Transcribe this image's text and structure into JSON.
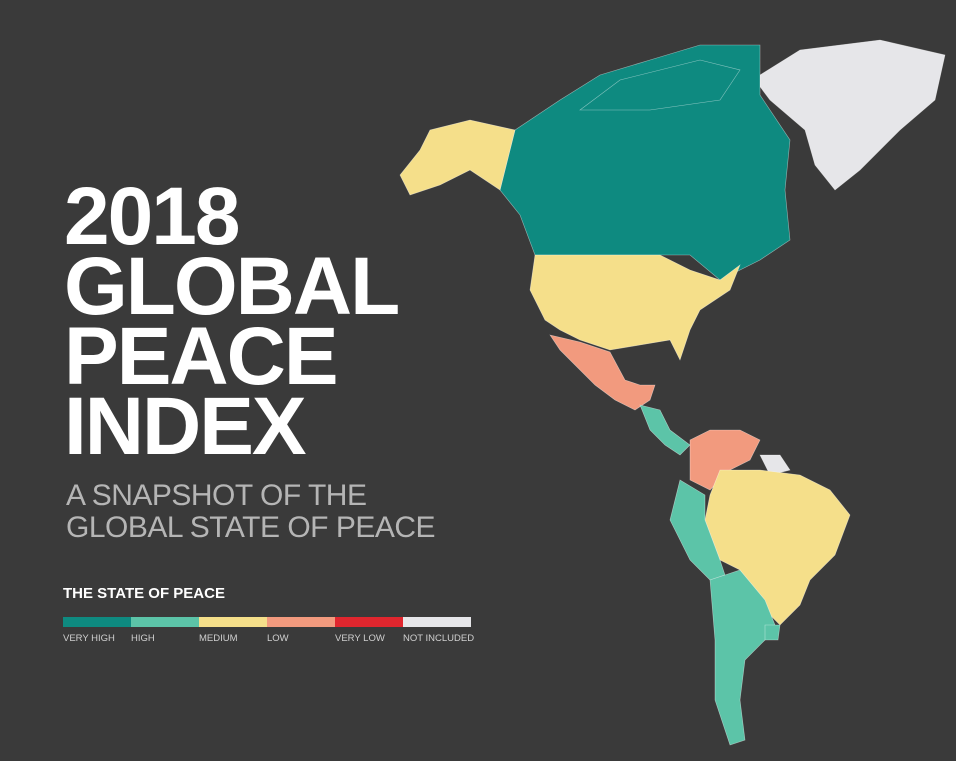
{
  "title_lines": [
    "2018",
    "GLOBAL",
    "PEACE",
    "INDEX"
  ],
  "subtitle_lines": [
    "A SNAPSHOT OF THE",
    "GLOBAL STATE OF PEACE"
  ],
  "legend": {
    "title": "THE STATE OF PEACE",
    "items": [
      {
        "label": "VERY HIGH",
        "color": "#0e8a80"
      },
      {
        "label": "HIGH",
        "color": "#5cc4a8"
      },
      {
        "label": "MEDIUM",
        "color": "#f5df8a"
      },
      {
        "label": "LOW",
        "color": "#f29a7e"
      },
      {
        "label": "VERY LOW",
        "color": "#e0262e"
      },
      {
        "label": "NOT INCLUDED",
        "color": "#e6e6e9"
      }
    ]
  }
}
